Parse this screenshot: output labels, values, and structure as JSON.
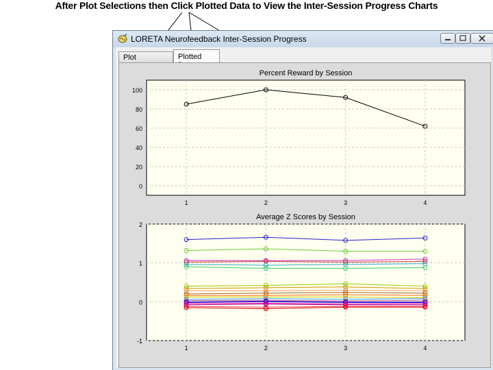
{
  "caption": "After Plot Selections then Click Plotted Data to View the Inter-Session Progress Charts",
  "window": {
    "title": "LORETA Neurofeedback Inter-Session Progress",
    "tabs": [
      {
        "label": "Plot Selections",
        "active": false
      },
      {
        "label": "Plotted Data",
        "active": true
      }
    ]
  },
  "chart_data": [
    {
      "type": "line",
      "title": "Percent Reward by Session",
      "categories": [
        "1",
        "2",
        "3",
        "4"
      ],
      "yticks": [
        "100",
        "80",
        "60",
        "40",
        "20",
        "0"
      ],
      "ylim": [
        -10,
        110
      ],
      "grid": true,
      "series": [
        {
          "color": "#000000",
          "values": [
            85,
            100,
            92,
            62
          ]
        }
      ]
    },
    {
      "type": "line",
      "title": "Average Z Scores by Session",
      "categories": [
        "1",
        "2",
        "3",
        "4"
      ],
      "yticks": [
        "2",
        "1",
        "0",
        "-1"
      ],
      "ylim": [
        -1,
        2
      ],
      "grid": true,
      "series": [
        {
          "color": "#2222cc",
          "values": [
            1.6,
            1.66,
            1.58,
            1.64
          ]
        },
        {
          "color": "#66cc33",
          "values": [
            1.32,
            1.36,
            1.3,
            1.3
          ]
        },
        {
          "color": "#cc33cc",
          "values": [
            1.06,
            1.06,
            1.06,
            1.1
          ]
        },
        {
          "color": "#cc3333",
          "values": [
            1.02,
            1.04,
            1.02,
            1.04
          ]
        },
        {
          "color": "#33aacc",
          "values": [
            0.96,
            0.94,
            0.96,
            0.98
          ]
        },
        {
          "color": "#33cc66",
          "values": [
            0.9,
            0.86,
            0.86,
            0.88
          ]
        },
        {
          "color": "#99cc00",
          "values": [
            0.4,
            0.42,
            0.46,
            0.4
          ]
        },
        {
          "color": "#cc9900",
          "values": [
            0.34,
            0.36,
            0.38,
            0.34
          ]
        },
        {
          "color": "#ff9966",
          "values": [
            0.28,
            0.28,
            0.3,
            0.28
          ]
        },
        {
          "color": "#996633",
          "values": [
            0.2,
            0.22,
            0.24,
            0.22
          ]
        },
        {
          "color": "#ff6600",
          "values": [
            0.16,
            0.16,
            0.18,
            0.16
          ]
        },
        {
          "color": "#cccc00",
          "values": [
            0.12,
            0.12,
            0.12,
            0.1
          ]
        },
        {
          "color": "#3399ff",
          "values": [
            0.06,
            0.08,
            0.06,
            0.08
          ]
        },
        {
          "color": "#cc6699",
          "values": [
            0.03,
            0.04,
            0.02,
            0.04
          ]
        },
        {
          "color": "#6633cc",
          "values": [
            0.0,
            0.02,
            0.0,
            0.0
          ]
        },
        {
          "color": "#0000cc",
          "values": [
            -0.02,
            0.0,
            -0.02,
            -0.02
          ]
        },
        {
          "color": "#ff00aa",
          "values": [
            -0.05,
            -0.04,
            -0.06,
            -0.05
          ]
        },
        {
          "color": "#990099",
          "values": [
            -0.08,
            -0.06,
            -0.08,
            -0.08
          ]
        },
        {
          "color": "#ff3366",
          "values": [
            -0.12,
            -0.14,
            -0.12,
            -0.12
          ]
        },
        {
          "color": "#cc0000",
          "values": [
            -0.15,
            -0.18,
            -0.14,
            -0.14
          ]
        }
      ]
    }
  ]
}
